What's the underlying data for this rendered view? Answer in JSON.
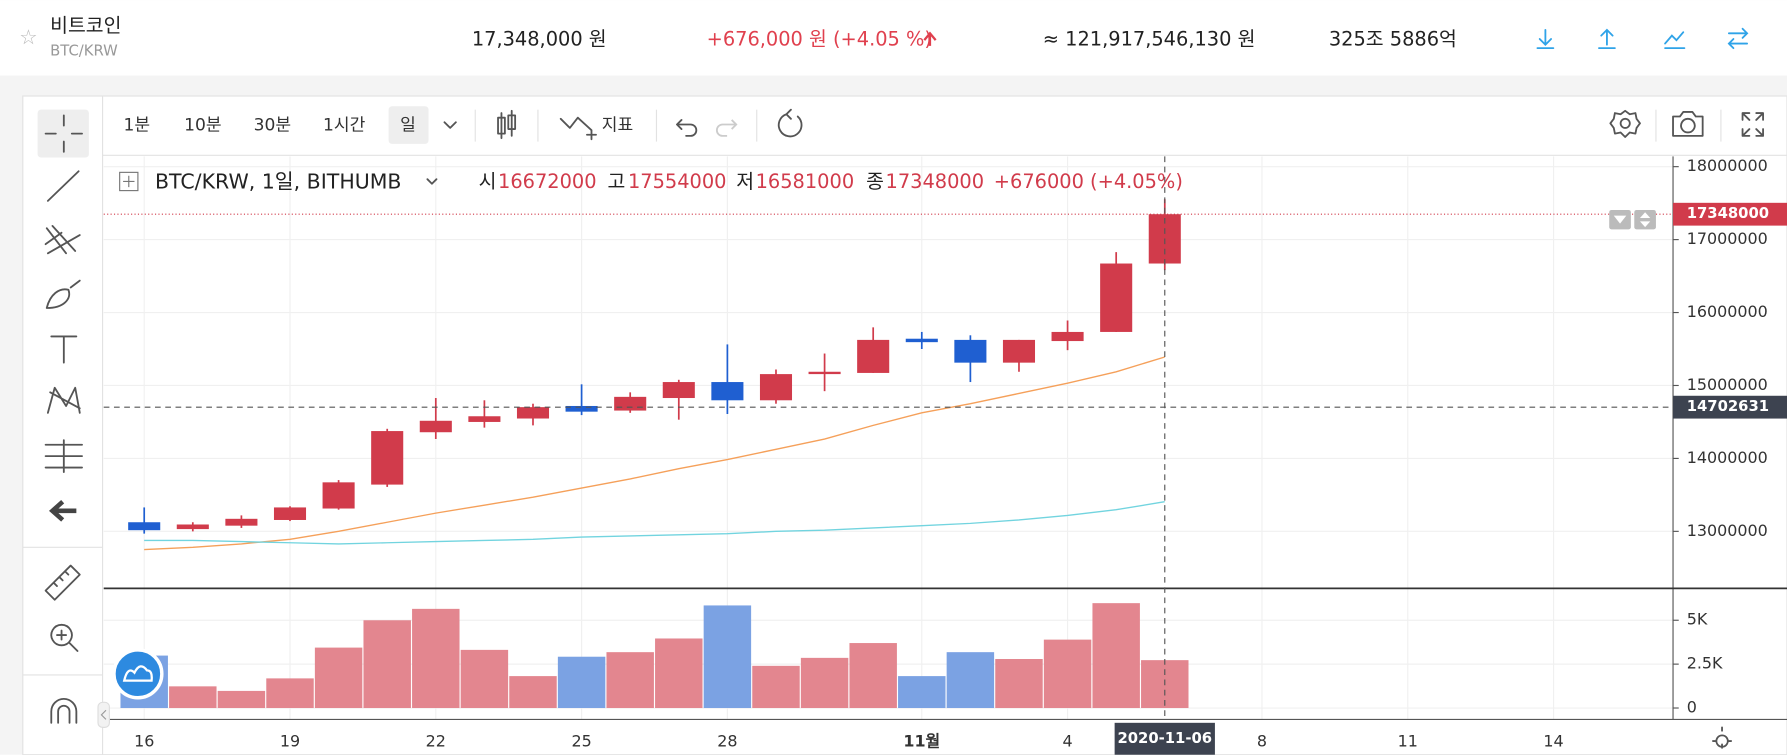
{
  "header": {
    "name": "비트코인",
    "pair": "BTC/KRW",
    "price": "17,348,000 원",
    "change": "+676,000 원 (+4.05 %)",
    "volume_krw": "≈ 121,917,546,130 원",
    "market_cap": "325조 5886억"
  },
  "toolbar": {
    "intervals": [
      "1분",
      "10분",
      "30분",
      "1시간",
      "일"
    ],
    "indicator": "지표"
  },
  "legend": {
    "symbol": "BTC/KRW, 1일, BITHUMB",
    "open_label": "시",
    "high_label": "고",
    "low_label": "저",
    "close_label": "종",
    "change": "+676000 (+4.05%)"
  },
  "crosshair": {
    "price": 14702631,
    "date": "2020-11-06"
  },
  "chart_data": [
    {
      "type": "candlestick",
      "x": [
        "2020-10-16",
        "2020-10-17",
        "2020-10-18",
        "2020-10-19",
        "2020-10-20",
        "2020-10-21",
        "2020-10-22",
        "2020-10-23",
        "2020-10-24",
        "2020-10-25",
        "2020-10-26",
        "2020-10-27",
        "2020-10-28",
        "2020-10-29",
        "2020-10-30",
        "2020-10-31",
        "2020-11-01",
        "2020-11-02",
        "2020-11-03",
        "2020-11-04",
        "2020-11-05",
        "2020-11-06"
      ],
      "open": [
        13125000,
        13031000,
        13078000,
        13156000,
        13313000,
        13641000,
        14359000,
        14500000,
        14547000,
        14719000,
        14656000,
        14828000,
        15047000,
        14797000,
        15156000,
        15172000,
        15641000,
        15625000,
        15313000,
        15609000,
        15734000,
        16672000
      ],
      "high": [
        13328000,
        13125000,
        13219000,
        13344000,
        13703000,
        14406000,
        14828000,
        14797000,
        14750000,
        15016000,
        14906000,
        15078000,
        15563000,
        15219000,
        15438000,
        15797000,
        15734000,
        15688000,
        15625000,
        15891000,
        16828000,
        17554000
      ],
      "low": [
        12969000,
        13000000,
        13047000,
        13141000,
        13297000,
        13609000,
        14266000,
        14422000,
        14453000,
        14594000,
        14625000,
        14531000,
        14609000,
        14750000,
        14922000,
        15172000,
        15500000,
        15047000,
        15188000,
        15484000,
        15734000,
        16581000
      ],
      "close": [
        13016000,
        13094000,
        13172000,
        13328000,
        13672000,
        14375000,
        14516000,
        14578000,
        14703000,
        14641000,
        14844000,
        15047000,
        14797000,
        15156000,
        15188000,
        15625000,
        15594000,
        15313000,
        15625000,
        15734000,
        16672000,
        17348000
      ],
      "up_color": "#d13b4b",
      "down_color": "#1f5fd1",
      "lines": [
        {
          "color": "#f5a05a",
          "values": [
            12750000,
            12781250,
            12828125,
            12890625,
            13000000,
            13125000,
            13250000,
            13359375,
            13468750,
            13593750,
            13718750,
            13859375,
            13984375,
            14125000,
            14265625,
            14453125,
            14625000,
            14750000,
            14890625,
            15031250,
            15187500,
            15390625
          ]
        },
        {
          "color": "#72d4df",
          "values": [
            12875000,
            12875000,
            12859375,
            12843750,
            12828125,
            12843750,
            12859375,
            12875000,
            12890625,
            12921875,
            12937500,
            12953125,
            12968750,
            13000000,
            13015625,
            13046875,
            13078125,
            13109375,
            13156250,
            13218750,
            13296875,
            13406250
          ]
        }
      ],
      "xlim": [
        "2020-10-15T04:00Z",
        "2020-11-16T11:00Z"
      ],
      "xticks": [
        {
          "value": "2020-10-16",
          "label": "16"
        },
        {
          "value": "2020-10-19",
          "label": "19"
        },
        {
          "value": "2020-10-22",
          "label": "22"
        },
        {
          "value": "2020-10-25",
          "label": "25"
        },
        {
          "value": "2020-10-28",
          "label": "28"
        },
        {
          "value": "2020-11-01",
          "label": "11월"
        },
        {
          "value": "2020-11-04",
          "label": "4"
        },
        {
          "value": "2020-11-08",
          "label": "8"
        },
        {
          "value": "2020-11-11",
          "label": "11"
        },
        {
          "value": "2020-11-14",
          "label": "14"
        }
      ],
      "ylim": [
        12234375,
        18140625
      ],
      "yticks": [
        13000000,
        14000000,
        15000000,
        16000000,
        17000000,
        18000000
      ],
      "grid": true
    },
    {
      "type": "bar",
      "values": [
        2987,
        1234,
        974,
        1688,
        3442,
        5000,
        5649,
        3312,
        1818,
        2922,
        3182,
        3961,
        5844,
        2403,
        2857,
        3701,
        1818,
        3182,
        2792,
        3896,
        5974,
        2727
      ],
      "up_color": "#e3868f",
      "down_color": "#7ba2e3",
      "ylim": [
        -649,
        6753
      ],
      "yticks": [
        0,
        {
          "value": 2500,
          "label": "2.5K"
        },
        {
          "value": 5000,
          "label": "5K"
        }
      ],
      "grid": true
    }
  ]
}
